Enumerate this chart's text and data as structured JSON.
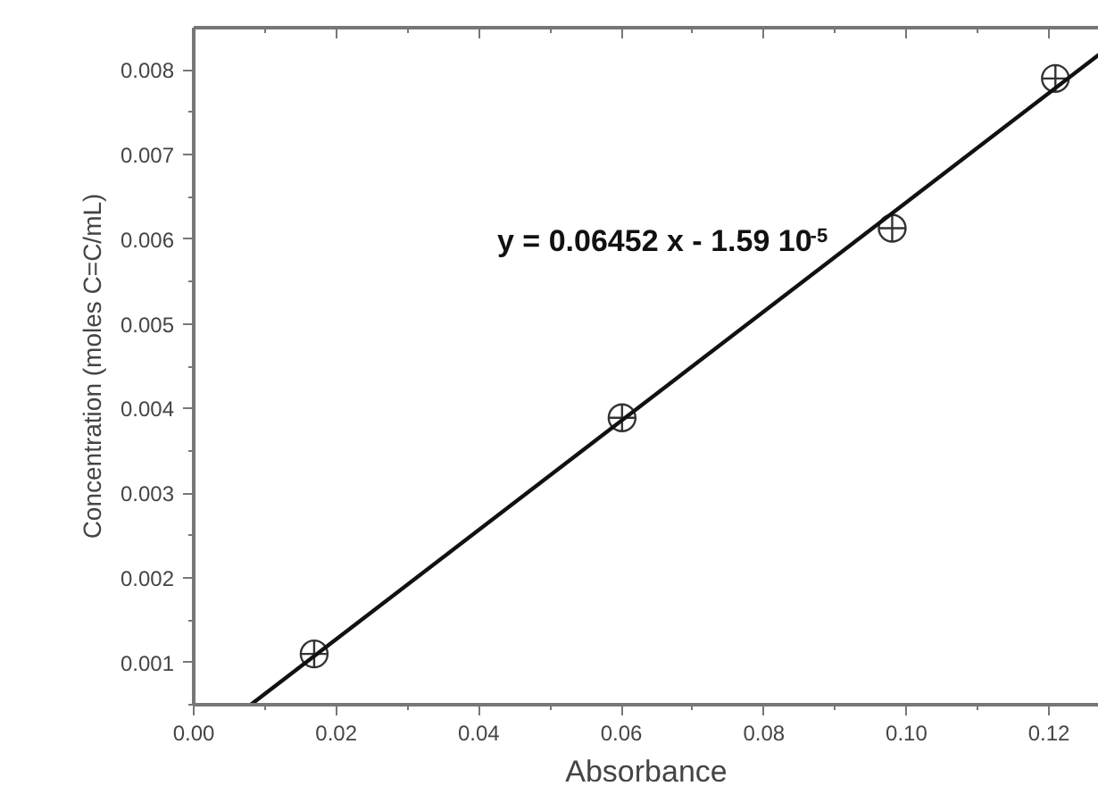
{
  "chart_data": {
    "type": "scatter",
    "xlabel": "Absorbance",
    "ylabel": "Concentration (moles C=C/mL)",
    "annotations": [
      "y = 0.06452 x - 1.59 10$^{-5}$"
    ],
    "x": [
      0.0169,
      0.0601,
      0.098,
      0.1209
    ],
    "series": [
      {
        "color": "#333333",
        "values": [
          0.0011,
          0.00389,
          0.00613,
          0.0079
        ]
      },
      {
        "type": "line",
        "marker": "none",
        "color": "#111111",
        "x": [
          0.008,
          0.127
        ],
        "values": [
          0.0005,
          0.00818
        ]
      }
    ],
    "marker": "circle",
    "grid": false,
    "xlim": [
      0,
      0.127
    ],
    "ylim": [
      0.0005,
      0.0085
    ],
    "xticks": [
      {
        "value": 0,
        "label": "0.00"
      },
      {
        "value": 0.02,
        "label": "0.02"
      },
      {
        "value": 0.04,
        "label": "0.04"
      },
      {
        "value": 0.06,
        "label": "0.06"
      },
      {
        "value": 0.08,
        "label": "0.08"
      },
      {
        "value": 0.1,
        "label": "0.10"
      },
      {
        "value": 0.12,
        "label": "0.12"
      }
    ],
    "yticks": [
      0.001,
      0.002,
      0.003,
      0.004,
      0.005,
      0.006,
      0.007,
      0.008
    ]
  }
}
